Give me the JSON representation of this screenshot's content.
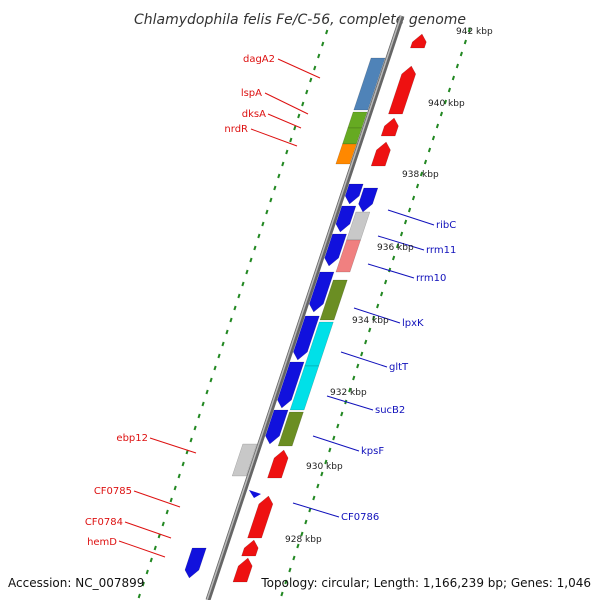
{
  "title": "Chlamydophila felis Fe/C-56, complete genome",
  "footer": {
    "accession": "Accession: NC_007899",
    "topology": "Topology: circular; Length: 1,166,239 bp; Genes: 1,046"
  },
  "ticks": [
    "942 kbp",
    "940 kbp",
    "938 kbp",
    "936 kbp",
    "934 kbp",
    "932 kbp",
    "930 kbp",
    "928 kbp"
  ],
  "genes_left": [
    "dagA2",
    "lspA",
    "dksA",
    "nrdR",
    "ebp12",
    "CF0785",
    "CF0784",
    "hemD"
  ],
  "genes_right": [
    "ribC",
    "rrm11",
    "rrm10",
    "lpxK",
    "gltT",
    "sucB2",
    "kpsF",
    "CF0786"
  ],
  "colors": {
    "forward": "#ee1111",
    "reverse": "#1111dd",
    "blue_gene": "#4f83b8",
    "green_gene": "#66aa22",
    "orange_gene": "#ff8800",
    "olive_gene": "#6b8e23",
    "cyan_gene": "#00e0e8",
    "pink_gene": "#f08080",
    "grey_gene": "#c8c8c8",
    "tick_green": "#228822",
    "backbone": "#888888"
  }
}
